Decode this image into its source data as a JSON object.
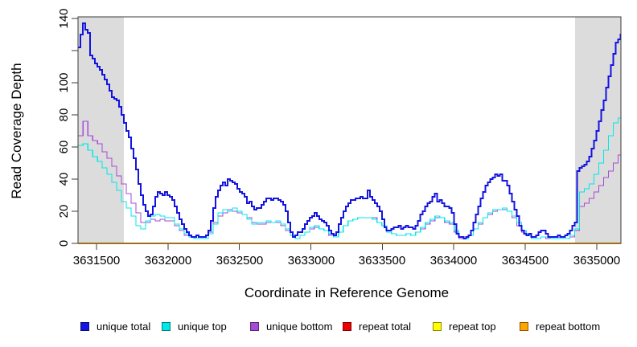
{
  "chart_data": {
    "type": "line",
    "title": "",
    "xlabel": "Coordinate in Reference Genome",
    "ylabel": "Read Coverage Depth",
    "x_range": [
      3631370,
      3635170
    ],
    "ylim": [
      0,
      141
    ],
    "grid": false,
    "frame_color": "#3b3b3b",
    "background_color": "#ffffff",
    "x_ticks": [
      {
        "value": 3631500,
        "label": "3631500"
      },
      {
        "value": 3632000,
        "label": "3632000"
      },
      {
        "value": 3632500,
        "label": "3632500"
      },
      {
        "value": 3633000,
        "label": "3633000"
      },
      {
        "value": 3633500,
        "label": "3633500"
      },
      {
        "value": 3634000,
        "label": "3634000"
      },
      {
        "value": 3634500,
        "label": "3634500"
      },
      {
        "value": 3635000,
        "label": "3635000"
      }
    ],
    "y_ticks": [
      {
        "value": 0,
        "label": "0"
      },
      {
        "value": 20,
        "label": "20"
      },
      {
        "value": 40,
        "label": "40"
      },
      {
        "value": 60,
        "label": "60"
      },
      {
        "value": 80,
        "label": "80"
      },
      {
        "value": 100,
        "label": "100"
      },
      {
        "value": 120,
        "label": ""
      },
      {
        "value": 140,
        "label": "140"
      }
    ],
    "shaded_regions": [
      {
        "x0": 3631370,
        "x1": 3631690,
        "color": "#dcdcdc"
      },
      {
        "x0": 3634850,
        "x1": 3635170,
        "color": "#dcdcdc"
      }
    ],
    "legend_position": "bottom",
    "draw_order": [
      3,
      4,
      2,
      1,
      0,
      5
    ],
    "series": [
      {
        "name": "unique total",
        "color": "#1414e0",
        "line_width": 2,
        "x_start": 3631371,
        "x_step": 16.87,
        "values": [
          122,
          130,
          137,
          133,
          131,
          117,
          115,
          112,
          110,
          108,
          105,
          102,
          99,
          95,
          91,
          90,
          89,
          85,
          80,
          75,
          70,
          66,
          59,
          53,
          46,
          37,
          30,
          24,
          20,
          17,
          18,
          23,
          29,
          32,
          31,
          30,
          32,
          30,
          29,
          27,
          23,
          19,
          15,
          12,
          9,
          7,
          5,
          4,
          4,
          5,
          4,
          4,
          4,
          5,
          8,
          14,
          22,
          29,
          33,
          36,
          38,
          36,
          40,
          39,
          38,
          37,
          34,
          32,
          31,
          29,
          25,
          26,
          23,
          21,
          22,
          22,
          24,
          26,
          28,
          28,
          27,
          28,
          28,
          27,
          26,
          24,
          20,
          13,
          7,
          4,
          5,
          7,
          7,
          9,
          12,
          14,
          16,
          17,
          19,
          17,
          15,
          14,
          13,
          11,
          8,
          6,
          5,
          7,
          12,
          16,
          20,
          23,
          25,
          27,
          27,
          28,
          28,
          29,
          28,
          28,
          33,
          29,
          27,
          25,
          23,
          20,
          15,
          10,
          8,
          8,
          9,
          10,
          10,
          11,
          9,
          10,
          11,
          10,
          10,
          9,
          11,
          14,
          18,
          20,
          23,
          25,
          26,
          29,
          31,
          26,
          27,
          25,
          23,
          23,
          22,
          19,
          12,
          6,
          4,
          4,
          3,
          4,
          5,
          8,
          13,
          18,
          23,
          28,
          32,
          36,
          38,
          40,
          41,
          43,
          42,
          43,
          39,
          39,
          36,
          31,
          26,
          21,
          17,
          11,
          8,
          6,
          5,
          6,
          4,
          4,
          5,
          7,
          8,
          8,
          6,
          4,
          4,
          4,
          4,
          5,
          4,
          4,
          5,
          6,
          8,
          11,
          13,
          45,
          47,
          48,
          49,
          51,
          54,
          59,
          64,
          70,
          76,
          83,
          89,
          97,
          104,
          111,
          118,
          125,
          127,
          130
        ]
      },
      {
        "name": "unique top",
        "color": "#00e8e8",
        "line_width": 1.2,
        "x_start": 3631371,
        "x_step": 33.74,
        "values": [
          61,
          62,
          58,
          54,
          51,
          47,
          43,
          38,
          33,
          26,
          22,
          17,
          11,
          9,
          14,
          17,
          18,
          17,
          16,
          16,
          12,
          9,
          6,
          4,
          3,
          3,
          3,
          6,
          12,
          19,
          21,
          20,
          22,
          20,
          18,
          15,
          12,
          13,
          13,
          14,
          13,
          14,
          12,
          9,
          5,
          3,
          5,
          7,
          10,
          11,
          9,
          8,
          6,
          4,
          7,
          11,
          14,
          15,
          16,
          16,
          16,
          15,
          13,
          11,
          7,
          6,
          5,
          5,
          6,
          5,
          7,
          10,
          13,
          15,
          17,
          16,
          14,
          13,
          8,
          4,
          3,
          5,
          9,
          13,
          16,
          19,
          21,
          21,
          22,
          20,
          17,
          13,
          8,
          5,
          3,
          3,
          4,
          4,
          3,
          3,
          3,
          3,
          5,
          9,
          32,
          34,
          37,
          43,
          50,
          58,
          67,
          75,
          78
        ]
      },
      {
        "name": "unique bottom",
        "color": "#a64ad4",
        "line_width": 1.2,
        "x_start": 3631371,
        "x_step": 33.74,
        "values": [
          67,
          76,
          67,
          64,
          62,
          57,
          53,
          48,
          42,
          37,
          31,
          25,
          19,
          13,
          13,
          15,
          14,
          15,
          14,
          14,
          11,
          8,
          5,
          4,
          3,
          3,
          3,
          7,
          13,
          17,
          19,
          21,
          20,
          19,
          18,
          16,
          13,
          12,
          12,
          13,
          13,
          13,
          11,
          8,
          5,
          3,
          5,
          7,
          9,
          10,
          9,
          8,
          5,
          4,
          7,
          11,
          14,
          15,
          16,
          16,
          16,
          16,
          13,
          11,
          7,
          6,
          5,
          5,
          6,
          5,
          7,
          9,
          12,
          14,
          16,
          16,
          13,
          12,
          7,
          3,
          3,
          5,
          9,
          12,
          16,
          18,
          20,
          21,
          21,
          20,
          16,
          11,
          7,
          5,
          3,
          3,
          4,
          3,
          3,
          3,
          3,
          3,
          4,
          8,
          23,
          25,
          28,
          32,
          36,
          41,
          45,
          50,
          55
        ]
      },
      {
        "name": "repeat total",
        "color": "#ee0000",
        "line_width": 1.2,
        "x_start": 3631371,
        "x_step": 3796,
        "values": [
          0,
          0
        ]
      },
      {
        "name": "repeat top",
        "color": "#ffff00",
        "line_width": 1.2,
        "x_start": 3631371,
        "x_step": 3796,
        "values": [
          0,
          0
        ]
      },
      {
        "name": "repeat bottom",
        "color": "#ffa500",
        "line_width": 1.6,
        "x_start": 3631371,
        "x_step": 3796,
        "values": [
          0,
          0
        ]
      }
    ],
    "legend": [
      {
        "label": "unique total",
        "color": "#1414e0"
      },
      {
        "label": "unique top",
        "color": "#00e8e8"
      },
      {
        "label": "unique bottom",
        "color": "#a64ad4"
      },
      {
        "label": "repeat total",
        "color": "#ee0000"
      },
      {
        "label": "repeat top",
        "color": "#ffff00"
      },
      {
        "label": "repeat bottom",
        "color": "#ffa500"
      }
    ]
  }
}
